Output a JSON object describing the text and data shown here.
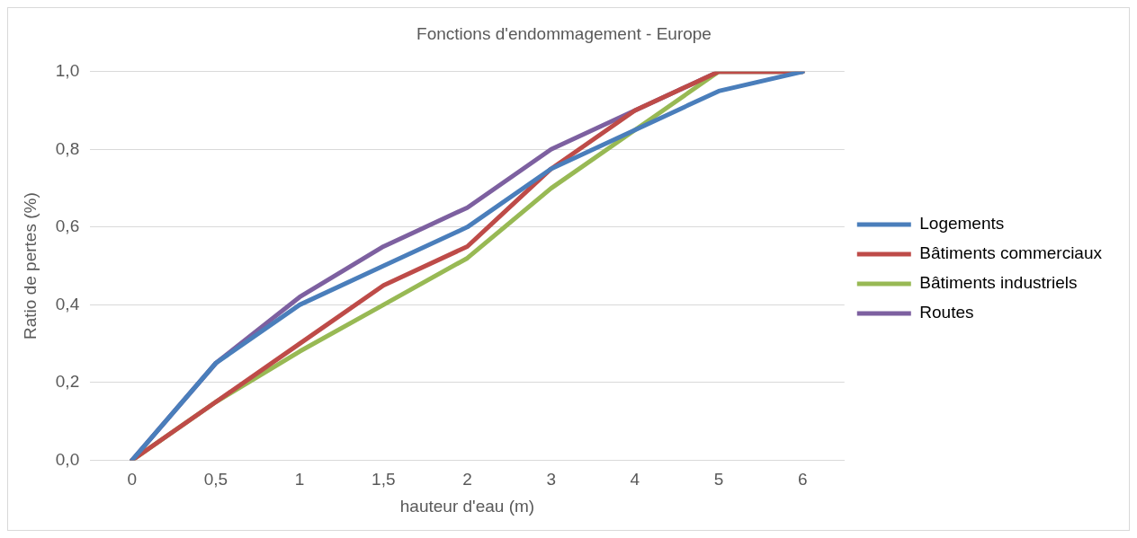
{
  "chart_data": {
    "type": "line",
    "title": "Fonctions d'endommagement - Europe",
    "xlabel": "hauteur d'eau (m)",
    "ylabel": "Ratio de pertes (%)",
    "categories": [
      "0",
      "0,5",
      "1",
      "1,5",
      "2",
      "3",
      "4",
      "5",
      "6"
    ],
    "series": [
      {
        "name": "Logements",
        "color": "#4a7ebb",
        "values": [
          0,
          0.25,
          0.4,
          0.5,
          0.6,
          0.75,
          0.85,
          0.95,
          1.0
        ]
      },
      {
        "name": "Bâtiments commerciaux",
        "color": "#be4b48",
        "values": [
          0,
          0.15,
          0.3,
          0.45,
          0.55,
          0.75,
          0.9,
          1.0,
          1.0
        ]
      },
      {
        "name": "Bâtiments industriels",
        "color": "#98b954",
        "values": [
          0,
          0.15,
          0.28,
          0.4,
          0.52,
          0.7,
          0.85,
          1.0,
          1.0
        ]
      },
      {
        "name": "Routes",
        "color": "#7d60a0",
        "values": [
          0,
          0.25,
          0.42,
          0.55,
          0.65,
          0.8,
          0.9,
          1.0,
          1.0
        ]
      }
    ],
    "ylim": [
      0,
      1.0
    ],
    "yticks": [
      {
        "value": 0,
        "label": "0,0"
      },
      {
        "value": 0.2,
        "label": "0,2"
      },
      {
        "value": 0.4,
        "label": "0,4"
      },
      {
        "value": 0.6,
        "label": "0,6"
      },
      {
        "value": 0.8,
        "label": "0,8"
      },
      {
        "value": 1.0,
        "label": "1,0"
      }
    ],
    "grid": "y",
    "legend": "right",
    "marker": "none",
    "line_style": "solid"
  }
}
